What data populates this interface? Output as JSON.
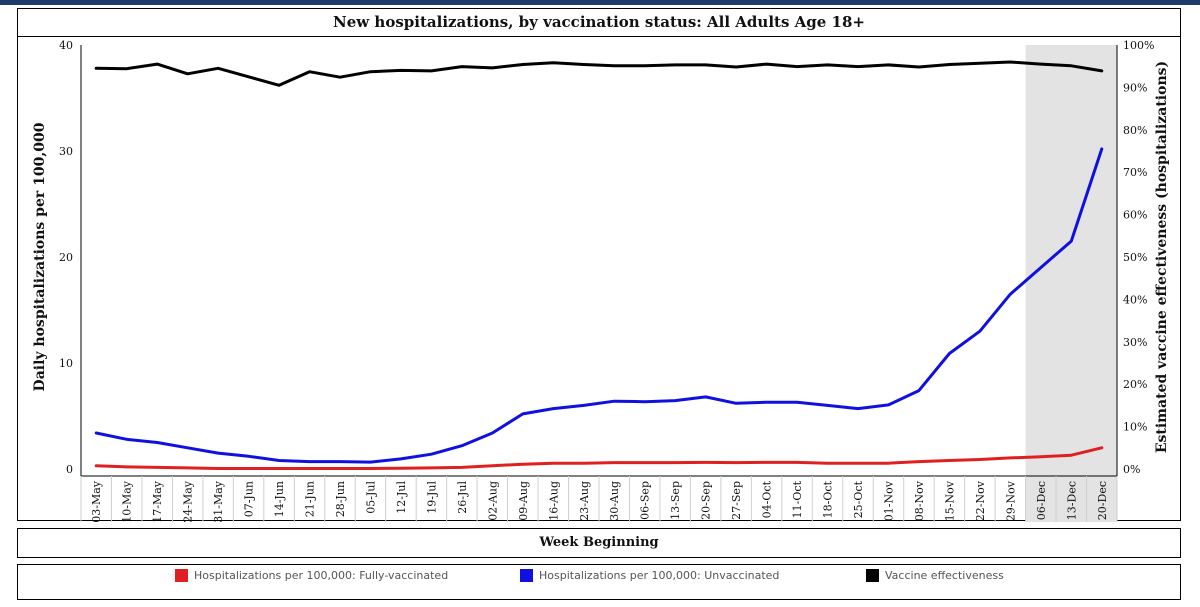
{
  "chart_data": {
    "type": "line",
    "title": "New hospitalizations, by vaccination status: All Adults Age 18+",
    "xlabel": "Week Beginning",
    "ylabel": "Daily hospitalizations per 100,000",
    "y2label": "Estimated vaccine effectiveness (hospitalizations)",
    "ylim": [
      0,
      40
    ],
    "y2lim": [
      0,
      100
    ],
    "yticks": [
      "0",
      "10",
      "20",
      "30",
      "40"
    ],
    "y2ticks": [
      "0%",
      "10%",
      "20%",
      "30%",
      "40%",
      "50%",
      "60%",
      "70%",
      "80%",
      "90%",
      "100%"
    ],
    "categories": [
      "03-May",
      "10-May",
      "17-May",
      "24-May",
      "31-May",
      "07-Jun",
      "14-Jun",
      "21-Jun",
      "28-Jun",
      "05-Jul",
      "12-Jul",
      "19-Jul",
      "26-Jul",
      "02-Aug",
      "09-Aug",
      "16-Aug",
      "23-Aug",
      "30-Aug",
      "06-Sep",
      "13-Sep",
      "20-Sep",
      "27-Sep",
      "04-Oct",
      "11-Oct",
      "18-Oct",
      "25-Oct",
      "01-Nov",
      "08-Nov",
      "15-Nov",
      "22-Nov",
      "29-Nov",
      "06-Dec",
      "13-Dec",
      "20-Dec"
    ],
    "shaded_from": "06-Dec",
    "series": [
      {
        "name": "Hospitalizations per 100,000: Fully-vaccinated",
        "axis": "left",
        "color": "#e02020",
        "values": [
          0.3,
          0.2,
          0.15,
          0.1,
          0.05,
          0.05,
          0.05,
          0.05,
          0.05,
          0.05,
          0.08,
          0.1,
          0.15,
          0.3,
          0.45,
          0.55,
          0.55,
          0.6,
          0.6,
          0.6,
          0.62,
          0.6,
          0.62,
          0.62,
          0.55,
          0.55,
          0.55,
          0.7,
          0.8,
          0.9,
          1.05,
          1.15,
          1.3,
          2.0
        ]
      },
      {
        "name": "Hospitalizations per 100,000: Unvaccinated",
        "axis": "left",
        "color": "#1010e0",
        "values": [
          3.4,
          2.8,
          2.5,
          2.0,
          1.5,
          1.2,
          0.8,
          0.7,
          0.7,
          0.65,
          0.95,
          1.4,
          2.2,
          3.4,
          5.2,
          5.7,
          6.0,
          6.4,
          6.35,
          6.45,
          6.8,
          6.2,
          6.3,
          6.3,
          6.0,
          5.7,
          6.05,
          7.4,
          10.9,
          13.0,
          16.5,
          19.0,
          21.5,
          30.2
        ]
      },
      {
        "name": "Vaccine effectiveness",
        "axis": "right",
        "color": "#000000",
        "values": [
          94.5,
          94.4,
          95.5,
          93.2,
          94.5,
          92.5,
          90.5,
          93.7,
          92.4,
          93.7,
          94.0,
          93.9,
          94.9,
          94.6,
          95.4,
          95.8,
          95.4,
          95.1,
          95.1,
          95.3,
          95.3,
          94.8,
          95.5,
          94.9,
          95.3,
          94.9,
          95.3,
          94.8,
          95.4,
          95.7,
          96.0,
          95.5,
          95.1,
          93.9
        ]
      }
    ]
  },
  "legend": {
    "items": [
      {
        "label": "Hospitalizations per 100,000: Fully-vaccinated",
        "color": "#e02020"
      },
      {
        "label": "Hospitalizations per 100,000: Unvaccinated",
        "color": "#1010e0"
      },
      {
        "label": "Vaccine effectiveness",
        "color": "#000000"
      }
    ]
  }
}
